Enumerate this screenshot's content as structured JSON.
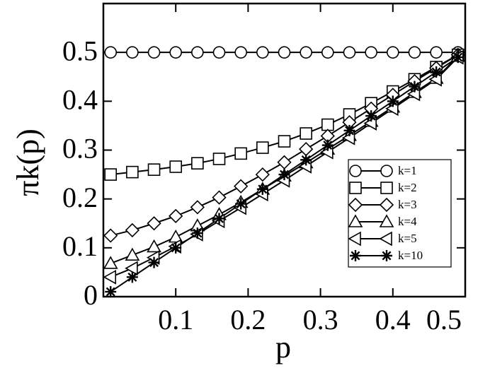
{
  "chart_data": {
    "type": "line",
    "xlabel": "p",
    "ylabel": "πk(p)",
    "x": [
      0.01,
      0.04,
      0.07,
      0.1,
      0.13,
      0.16,
      0.19,
      0.22,
      0.25,
      0.28,
      0.31,
      0.34,
      0.37,
      0.4,
      0.43,
      0.46,
      0.49
    ],
    "series": [
      {
        "name": "k=1",
        "color": "#000000",
        "marker": "circle",
        "values": [
          0.5,
          0.5,
          0.5,
          0.5,
          0.5,
          0.5,
          0.5,
          0.5,
          0.5,
          0.5,
          0.5,
          0.5,
          0.5,
          0.5,
          0.5,
          0.5,
          0.5
        ]
      },
      {
        "name": "k=2",
        "color": "#000000",
        "marker": "square",
        "values": [
          0.25,
          0.255,
          0.26,
          0.266,
          0.273,
          0.282,
          0.293,
          0.305,
          0.318,
          0.334,
          0.352,
          0.373,
          0.396,
          0.42,
          0.445,
          0.47,
          0.495
        ]
      },
      {
        "name": "k=3",
        "color": "#000000",
        "marker": "diamond",
        "values": [
          0.125,
          0.136,
          0.15,
          0.165,
          0.183,
          0.203,
          0.226,
          0.25,
          0.275,
          0.302,
          0.329,
          0.357,
          0.385,
          0.413,
          0.441,
          0.468,
          0.495
        ]
      },
      {
        "name": "k=4",
        "color": "#000000",
        "marker": "triangle-up",
        "values": [
          0.068,
          0.085,
          0.102,
          0.122,
          0.145,
          0.168,
          0.193,
          0.22,
          0.247,
          0.274,
          0.302,
          0.33,
          0.359,
          0.388,
          0.418,
          0.447,
          0.492
        ]
      },
      {
        "name": "k=5",
        "color": "#000000",
        "marker": "triangle-left",
        "values": [
          0.04,
          0.058,
          0.08,
          0.103,
          0.128,
          0.155,
          0.182,
          0.21,
          0.238,
          0.267,
          0.296,
          0.325,
          0.355,
          0.385,
          0.415,
          0.445,
          0.49
        ]
      },
      {
        "name": "k=10",
        "color": "#000000",
        "marker": "star",
        "values": [
          0.01,
          0.04,
          0.07,
          0.1,
          0.13,
          0.16,
          0.19,
          0.22,
          0.25,
          0.28,
          0.31,
          0.34,
          0.37,
          0.4,
          0.43,
          0.46,
          0.49
        ]
      }
    ],
    "xlim": [
      0,
      0.5
    ],
    "ylim": [
      0,
      0.6
    ],
    "xticks": [
      0.1,
      0.2,
      0.3,
      0.4,
      0.5
    ],
    "yticks": [
      0,
      0.1,
      0.2,
      0.3,
      0.4,
      0.5
    ],
    "legend": "lower right",
    "grid": false
  }
}
